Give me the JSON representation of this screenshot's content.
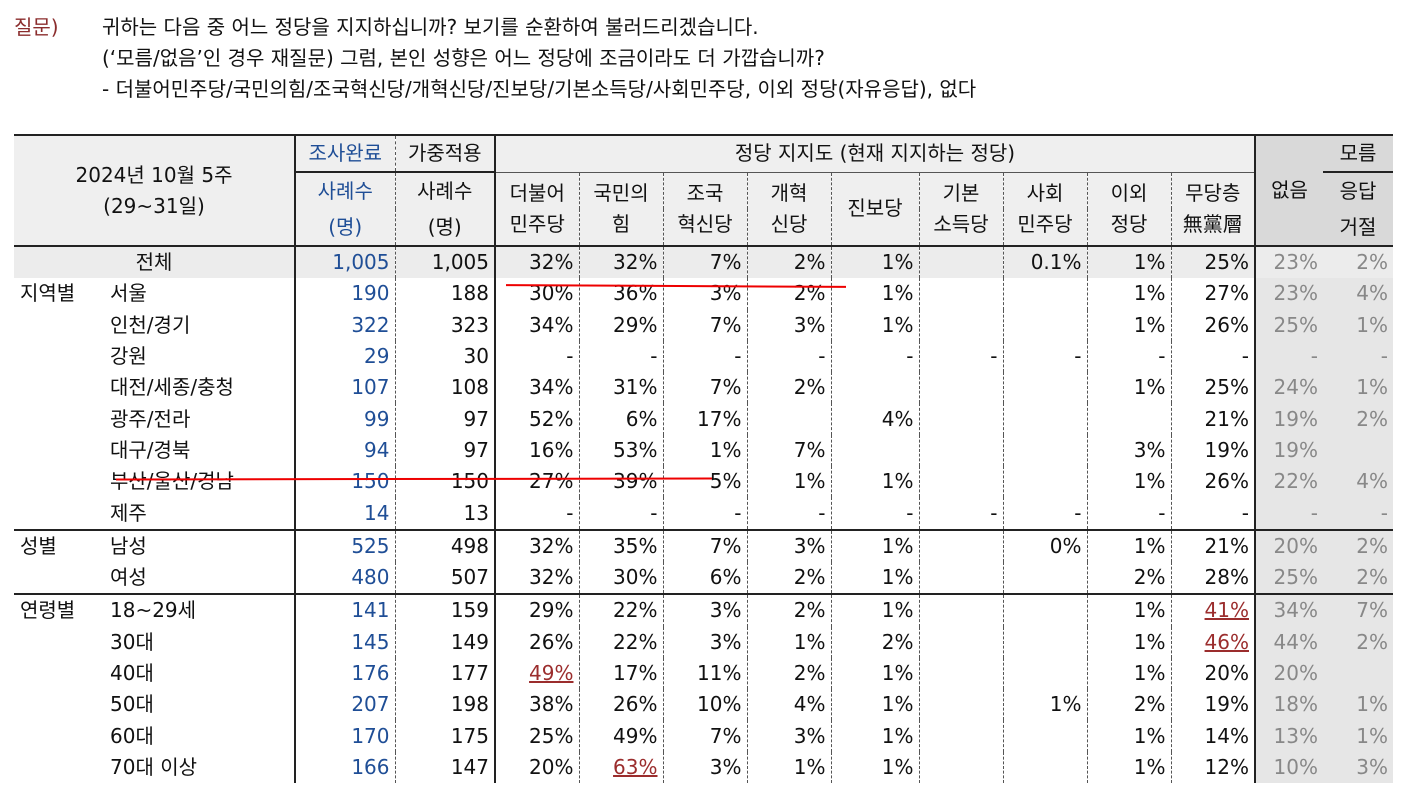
{
  "question": {
    "label": "질문)",
    "line1": "귀하는 다음 중 어느 정당을 지지하십니까? 보기를 순환하여 불러드리겠습니다.",
    "line2": "(‘모름/없음’인 경우 재질문) 그럼, 본인 성향은 어느 정당에 조금이라도 더 가깝습니까?",
    "line3": "- 더불어민주당/국민의힘/조국혁신당/개혁신당/진보당/기본소득당/사회민주당, 이외 정당(자유응답), 없다"
  },
  "header": {
    "period1": "2024년 10월 5주",
    "period2": "(29~31일)",
    "col_complete": [
      "조사완료",
      "사례수",
      "(명)"
    ],
    "col_weighted": [
      "가중적용",
      "사례수",
      "(명)"
    ],
    "group_title": "정당 지지도 (현재 지지하는 정당)",
    "parties": [
      [
        "더불어",
        "민주당"
      ],
      [
        "국민의",
        "힘"
      ],
      [
        "조국",
        "혁신당"
      ],
      [
        "개혁",
        "신당"
      ],
      [
        "진보당"
      ],
      [
        "기본",
        "소득당"
      ],
      [
        "사회",
        "민주당"
      ],
      [
        "이외",
        "정당"
      ],
      [
        "무당층",
        "無黨層"
      ]
    ],
    "none": "없음",
    "refuse": [
      "모름",
      "응답",
      "거절"
    ]
  },
  "rows": [
    {
      "group": "",
      "label": "전체",
      "n": "1,005",
      "w": "1,005",
      "v": [
        "32%",
        "32%",
        "7%",
        "2%",
        "1%",
        "",
        "0.1%",
        "1%",
        "25%"
      ],
      "none": "23%",
      "refuse": "2%",
      "total": true
    },
    {
      "group": "지역별",
      "label": "서울",
      "n": "190",
      "w": "188",
      "v": [
        "30%",
        "36%",
        "3%",
        "2%",
        "1%",
        "",
        "",
        "1%",
        "27%"
      ],
      "none": "23%",
      "refuse": "4%"
    },
    {
      "group": "",
      "label": "인천/경기",
      "n": "322",
      "w": "323",
      "v": [
        "34%",
        "29%",
        "7%",
        "3%",
        "1%",
        "",
        "",
        "1%",
        "26%"
      ],
      "none": "25%",
      "refuse": "1%"
    },
    {
      "group": "",
      "label": "강원",
      "n": "29",
      "w": "30",
      "v": [
        "-",
        "-",
        "-",
        "-",
        "-",
        "-",
        "-",
        "-",
        "-"
      ],
      "none": "-",
      "refuse": "-"
    },
    {
      "group": "",
      "label": "대전/세종/충청",
      "n": "107",
      "w": "108",
      "v": [
        "34%",
        "31%",
        "7%",
        "2%",
        "",
        "",
        "",
        "1%",
        "25%"
      ],
      "none": "24%",
      "refuse": "1%"
    },
    {
      "group": "",
      "label": "광주/전라",
      "n": "99",
      "w": "97",
      "v": [
        "52%",
        "6%",
        "17%",
        "",
        "4%",
        "",
        "",
        "",
        "21%"
      ],
      "none": "19%",
      "refuse": "2%"
    },
    {
      "group": "",
      "label": "대구/경북",
      "n": "94",
      "w": "97",
      "v": [
        "16%",
        "53%",
        "1%",
        "7%",
        "",
        "",
        "",
        "3%",
        "19%"
      ],
      "none": "19%",
      "refuse": ""
    },
    {
      "group": "",
      "label": "부산/울산/경남",
      "n": "150",
      "w": "150",
      "v": [
        "27%",
        "39%",
        "5%",
        "1%",
        "1%",
        "",
        "",
        "1%",
        "26%"
      ],
      "none": "22%",
      "refuse": "4%"
    },
    {
      "group": "",
      "label": "제주",
      "n": "14",
      "w": "13",
      "v": [
        "-",
        "-",
        "-",
        "-",
        "-",
        "-",
        "-",
        "-",
        "-"
      ],
      "none": "-",
      "refuse": "-"
    },
    {
      "group": "성별",
      "label": "남성",
      "n": "525",
      "w": "498",
      "v": [
        "32%",
        "35%",
        "7%",
        "3%",
        "1%",
        "",
        "0%",
        "1%",
        "21%"
      ],
      "none": "20%",
      "refuse": "2%",
      "sep": true
    },
    {
      "group": "",
      "label": "여성",
      "n": "480",
      "w": "507",
      "v": [
        "32%",
        "30%",
        "6%",
        "2%",
        "1%",
        "",
        "",
        "2%",
        "28%"
      ],
      "none": "25%",
      "refuse": "2%"
    },
    {
      "group": "연령별",
      "label": "18~29세",
      "n": "141",
      "w": "159",
      "v": [
        "29%",
        "22%",
        "3%",
        "2%",
        "1%",
        "",
        "",
        "1%",
        "41%"
      ],
      "none": "34%",
      "refuse": "7%",
      "sep": true,
      "hl": [
        8
      ]
    },
    {
      "group": "",
      "label": "30대",
      "n": "145",
      "w": "149",
      "v": [
        "26%",
        "22%",
        "3%",
        "1%",
        "2%",
        "",
        "",
        "1%",
        "46%"
      ],
      "none": "44%",
      "refuse": "2%",
      "hl": [
        8
      ]
    },
    {
      "group": "",
      "label": "40대",
      "n": "176",
      "w": "177",
      "v": [
        "49%",
        "17%",
        "11%",
        "2%",
        "1%",
        "",
        "",
        "1%",
        "20%"
      ],
      "none": "20%",
      "refuse": "",
      "hl": [
        0
      ]
    },
    {
      "group": "",
      "label": "50대",
      "n": "207",
      "w": "198",
      "v": [
        "38%",
        "26%",
        "10%",
        "4%",
        "1%",
        "",
        "1%",
        "2%",
        "19%"
      ],
      "none": "18%",
      "refuse": "1%"
    },
    {
      "group": "",
      "label": "60대",
      "n": "170",
      "w": "175",
      "v": [
        "25%",
        "49%",
        "7%",
        "3%",
        "1%",
        "",
        "",
        "1%",
        "14%"
      ],
      "none": "13%",
      "refuse": "1%"
    },
    {
      "group": "",
      "label": "70대 이상",
      "n": "166",
      "w": "147",
      "v": [
        "20%",
        "63%",
        "3%",
        "1%",
        "1%",
        "",
        "",
        "1%",
        "12%"
      ],
      "none": "10%",
      "refuse": "3%",
      "hl": [
        1
      ]
    }
  ],
  "colors": {
    "question_label": "#8b2d2d",
    "sample_blue": "#1f4e96",
    "highlight": "#9b2d2d",
    "annotation": "#e00000"
  }
}
